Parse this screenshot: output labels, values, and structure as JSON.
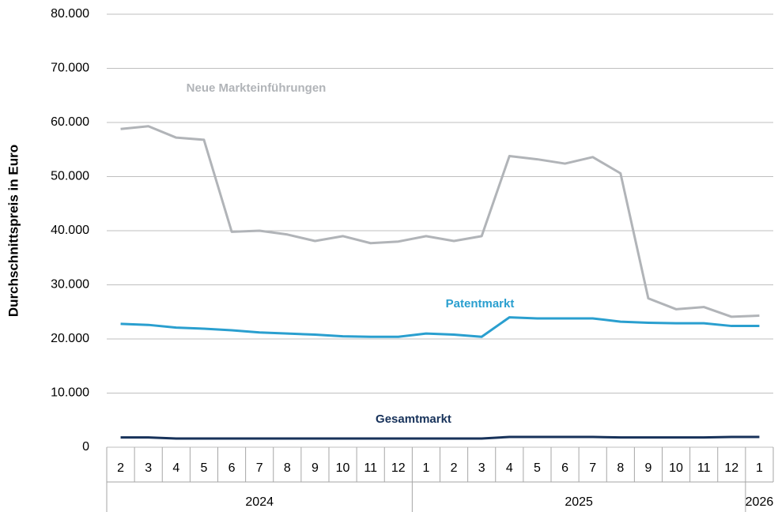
{
  "chart_data": {
    "type": "line",
    "y_label": "Durchschnittspreis in Euro",
    "category_groups": [
      {
        "label": "2024",
        "categories": [
          "2",
          "3",
          "4",
          "5",
          "6",
          "7",
          "8",
          "9",
          "10",
          "11",
          "12"
        ]
      },
      {
        "label": "2025",
        "categories": [
          "1",
          "2",
          "3",
          "4",
          "5",
          "6",
          "7",
          "8",
          "9",
          "10",
          "11",
          "12"
        ]
      },
      {
        "label": "2026",
        "categories": [
          "1"
        ]
      }
    ],
    "series": [
      {
        "name": "Neue Markteinführungen",
        "color": "#b1b4b8",
        "values": [
          58800,
          59300,
          57200,
          56800,
          39800,
          40000,
          39300,
          38100,
          39000,
          37700,
          38000,
          39000,
          38100,
          39000,
          53800,
          53200,
          52400,
          53600,
          50600,
          27500,
          25500,
          25900,
          24100,
          24300
        ]
      },
      {
        "name": "Patentmarkt",
        "color": "#2a9fcf",
        "values": [
          22800,
          22600,
          22100,
          21900,
          21600,
          21200,
          21000,
          20800,
          20500,
          20400,
          20400,
          21000,
          20800,
          20400,
          24000,
          23800,
          23800,
          23800,
          23200,
          23000,
          22900,
          22900,
          22400,
          22400
        ]
      },
      {
        "name": "Gesamtmarkt",
        "color": "#17325a",
        "values": [
          1800,
          1800,
          1600,
          1600,
          1600,
          1600,
          1600,
          1600,
          1600,
          1600,
          1600,
          1600,
          1600,
          1600,
          1900,
          1900,
          1900,
          1900,
          1800,
          1800,
          1800,
          1800,
          1900,
          1900
        ]
      }
    ],
    "ylim": [
      0,
      80000
    ],
    "yticks": [
      0,
      {
        "value": 10000,
        "label": "10.000"
      },
      {
        "value": 20000,
        "label": "20.000"
      },
      {
        "value": 30000,
        "label": "30.000"
      },
      {
        "value": 40000,
        "label": "40.000"
      },
      {
        "value": 50000,
        "label": "50.000"
      },
      {
        "value": 60000,
        "label": "60.000"
      },
      {
        "value": 70000,
        "label": "70.000"
      },
      {
        "value": 80000,
        "label": "80.000"
      }
    ],
    "grid": true
  }
}
